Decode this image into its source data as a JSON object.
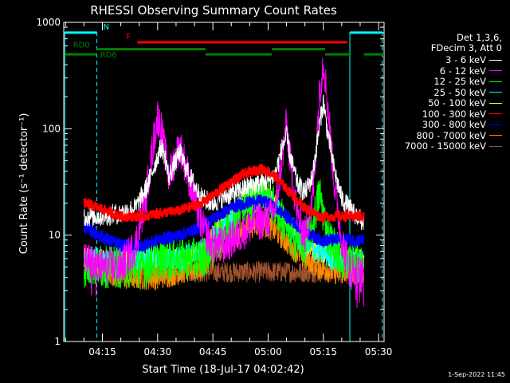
{
  "chart_data": {
    "type": "line",
    "title": "RHESSI Observing Summary Count Rates",
    "xlabel": "Start Time (18-Jul-17 04:02:42)",
    "ylabel": "Count Rate (s⁻¹ detector⁻¹)",
    "yscale": "log",
    "ylim": [
      1,
      1000
    ],
    "xlim_minutes": [
      4.5,
      91.5
    ],
    "x_ticks": [
      {
        "label": "04:15",
        "minute": 15
      },
      {
        "label": "04:30",
        "minute": 30
      },
      {
        "label": "04:45",
        "minute": 45
      },
      {
        "label": "05:00",
        "minute": 60
      },
      {
        "label": "05:15",
        "minute": 75
      },
      {
        "label": "05:30",
        "minute": 90
      }
    ],
    "y_ticks": [
      {
        "label": "1",
        "value": 1
      },
      {
        "label": "10",
        "value": 10
      },
      {
        "label": "100",
        "value": 100
      },
      {
        "label": "1000",
        "value": 1000
      }
    ],
    "legend_header": [
      "Det 1,3,6,",
      "FDecim 3, Att 0"
    ],
    "legend_position": "right",
    "series": [
      {
        "name": "3 - 6 keV",
        "color": "#ffffff",
        "x": [
          10,
          14,
          20,
          24,
          27,
          30,
          31,
          32,
          33,
          36,
          38,
          42,
          45,
          48,
          52,
          56,
          60,
          62,
          64,
          65,
          66,
          68,
          70,
          72,
          74,
          75,
          76,
          78,
          80,
          82,
          86
        ],
        "values": [
          15,
          15,
          16,
          18,
          28,
          55,
          68,
          55,
          35,
          60,
          40,
          22,
          20,
          23,
          26,
          30,
          32,
          38,
          70,
          85,
          55,
          30,
          25,
          35,
          110,
          180,
          100,
          40,
          22,
          18,
          13
        ]
      },
      {
        "name": "6 - 12 keV",
        "color": "#ff00ff",
        "x": [
          10,
          14,
          20,
          24,
          27,
          29,
          30,
          31,
          33,
          36,
          38,
          42,
          45,
          48,
          52,
          56,
          60,
          62,
          64,
          65,
          66,
          68,
          70,
          72,
          74,
          75,
          76,
          78,
          80,
          82,
          86
        ],
        "values": [
          6,
          5,
          5,
          8,
          25,
          80,
          130,
          100,
          35,
          70,
          40,
          12,
          8,
          8,
          10,
          13,
          14,
          18,
          60,
          110,
          50,
          15,
          10,
          20,
          220,
          450,
          200,
          30,
          9,
          5,
          4
        ]
      },
      {
        "name": "12 - 25 keV",
        "color": "#00ff00",
        "x": [
          10,
          14,
          20,
          26,
          30,
          36,
          42,
          46,
          50,
          54,
          58,
          60,
          62,
          64,
          66,
          70,
          72,
          74,
          76,
          80,
          86
        ],
        "values": [
          5,
          5,
          5,
          5,
          6,
          6,
          6,
          9,
          13,
          20,
          24,
          22,
          18,
          14,
          10,
          8,
          12,
          25,
          10,
          6,
          5
        ]
      },
      {
        "name": "25 - 50 keV",
        "color": "#00ffff",
        "x": [
          10,
          14,
          20,
          26,
          30,
          36,
          42,
          46,
          50,
          54,
          58,
          60,
          62,
          66,
          70,
          74,
          78,
          82,
          86
        ],
        "values": [
          6,
          6,
          6,
          6,
          6,
          6,
          7,
          10,
          14,
          20,
          22,
          21,
          18,
          12,
          8,
          7,
          6,
          6,
          6
        ]
      },
      {
        "name": "50 - 100 keV",
        "color": "#ffff00",
        "x": [
          10,
          14,
          20,
          26,
          30,
          36,
          42,
          46,
          50,
          54,
          58,
          60,
          62,
          66,
          70,
          74,
          78,
          82,
          86
        ],
        "values": [
          6,
          6,
          6,
          6,
          6,
          6,
          7,
          11,
          15,
          22,
          27,
          24,
          19,
          12,
          8,
          7,
          6,
          6,
          6
        ]
      },
      {
        "name": "100 - 300 keV",
        "color": "#ff0000",
        "x": [
          10,
          14,
          20,
          26,
          30,
          36,
          42,
          46,
          50,
          54,
          58,
          60,
          62,
          66,
          70,
          74,
          78,
          82,
          86
        ],
        "values": [
          20,
          18,
          15,
          15,
          16,
          17,
          20,
          25,
          32,
          38,
          42,
          40,
          35,
          25,
          18,
          15,
          15,
          15,
          15
        ]
      },
      {
        "name": "300 - 800 keV",
        "color": "#0000ff",
        "x": [
          10,
          14,
          20,
          26,
          30,
          36,
          42,
          46,
          50,
          54,
          58,
          60,
          62,
          66,
          70,
          74,
          78,
          82,
          86
        ],
        "values": [
          12,
          10,
          8,
          8,
          9,
          10,
          12,
          15,
          18,
          20,
          21,
          20,
          18,
          14,
          11,
          9,
          9,
          9,
          9
        ]
      },
      {
        "name": "800 - 7000 keV",
        "color": "#ff8c00",
        "x": [
          10,
          14,
          20,
          26,
          30,
          36,
          42,
          46,
          50,
          54,
          58,
          60,
          62,
          66,
          70,
          74,
          78,
          82,
          86
        ],
        "values": [
          6,
          5,
          4,
          4,
          4,
          4.5,
          5,
          7,
          9,
          12,
          13,
          12,
          11,
          8,
          6,
          5,
          4.5,
          4.5,
          4.5
        ]
      },
      {
        "name": "7000 - 15000 keV",
        "color": "#a0522d",
        "x": [
          10,
          20,
          30,
          40,
          50,
          60,
          70,
          80,
          86
        ],
        "values": [
          4.5,
          4.5,
          4.5,
          4.5,
          4.5,
          4.5,
          4.5,
          4.5,
          4.5
        ]
      }
    ],
    "vertical_lines": [
      {
        "minute": 4.8,
        "style": "solid",
        "color": "#00ffff"
      },
      {
        "minute": 13.5,
        "style": "dashed",
        "color": "#00ffff"
      },
      {
        "minute": 82.2,
        "style": "solid",
        "color": "#00ffff"
      },
      {
        "minute": 91.0,
        "style": "dashed",
        "color": "#00ffff"
      }
    ],
    "flag_bars": [
      {
        "label": "N",
        "color": "#00ffff",
        "value": 800,
        "segments": [
          [
            4.8,
            13.5
          ],
          [
            82.2,
            91.0
          ]
        ]
      },
      {
        "label": "F",
        "color": "#ff0000",
        "value": 650,
        "segments": [
          [
            24.5,
            81.5
          ]
        ]
      },
      {
        "label": "RD0",
        "color": "#008000",
        "value": 560,
        "segments": [
          [
            13.5,
            43
          ],
          [
            61,
            75.5
          ]
        ]
      },
      {
        "label": "RD6",
        "color": "#008000",
        "value": 500,
        "segments": [
          [
            4.8,
            13.5
          ],
          [
            43,
            61
          ],
          [
            75.5,
            82.5
          ],
          [
            86,
            91.5
          ]
        ]
      }
    ]
  },
  "stamp": "1-Sep-2022 11:45"
}
